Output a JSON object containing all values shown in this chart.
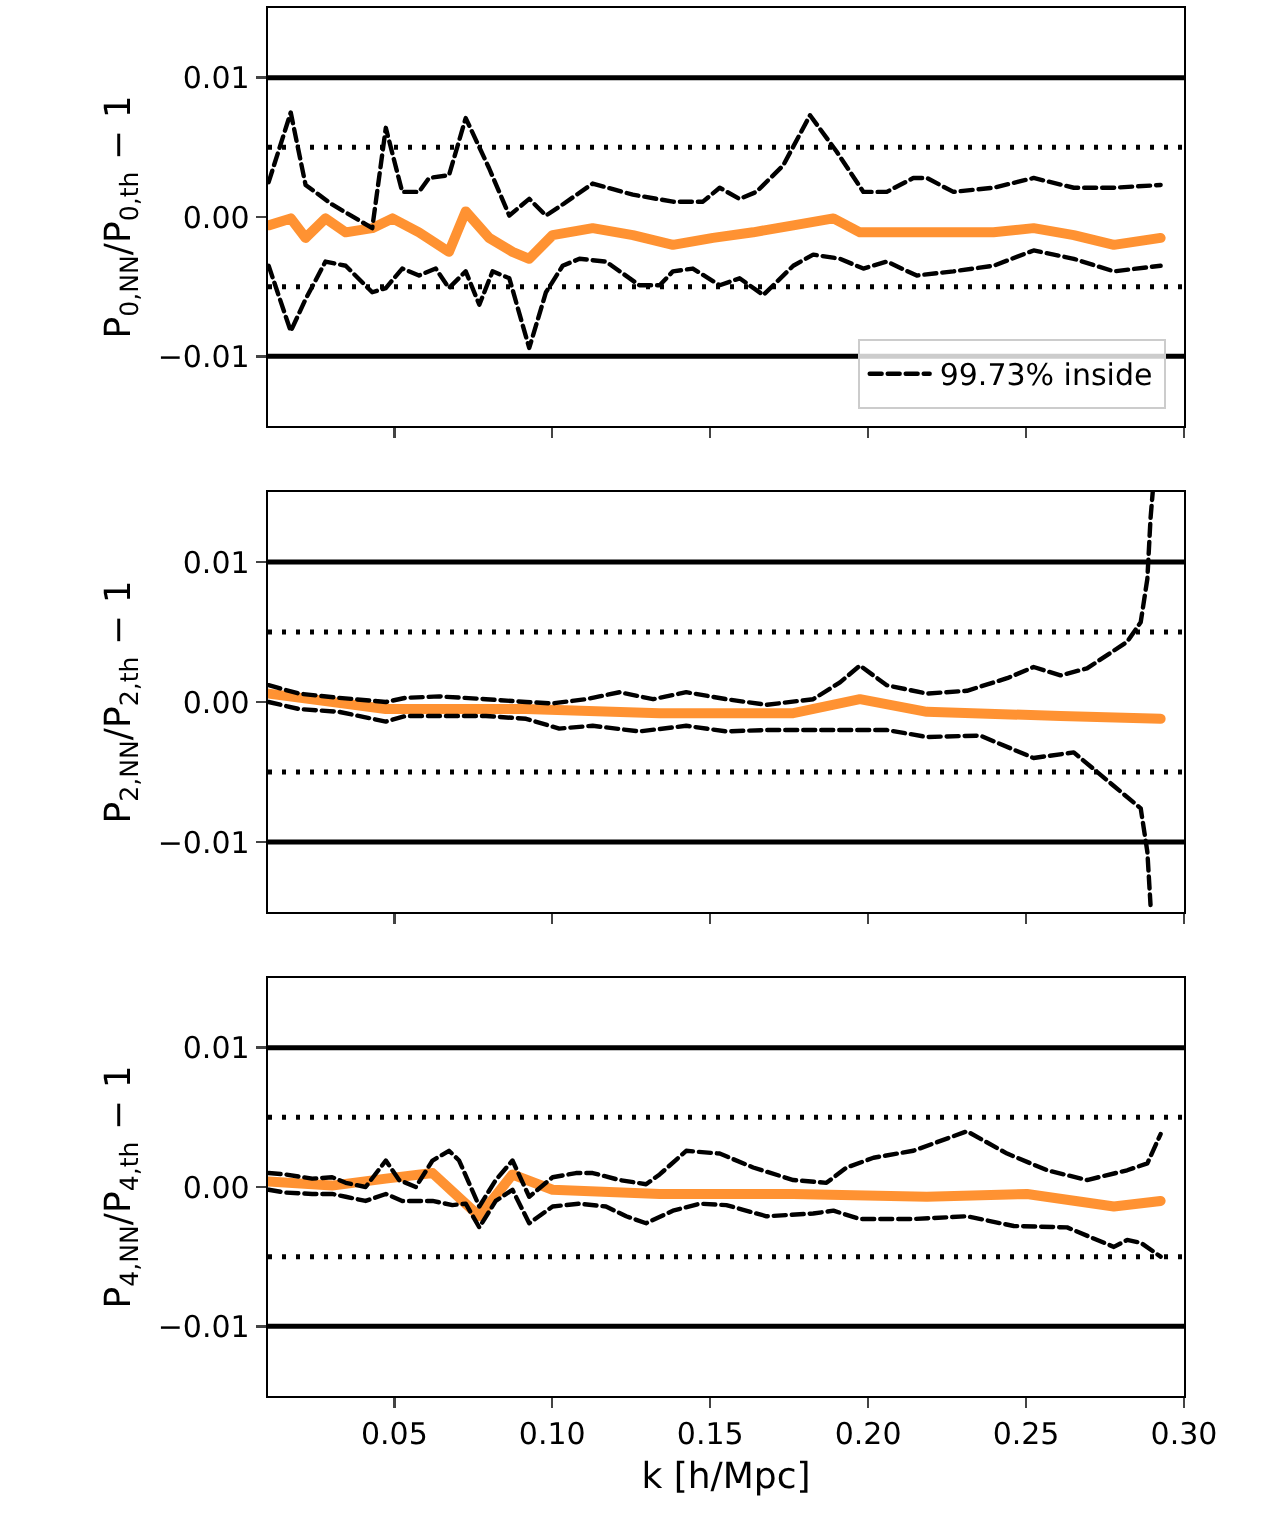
{
  "chart_data": [
    {
      "type": "line",
      "ylabel": "P$_{0,NN}$/P$_{0,th}$ − 1",
      "xlim": [
        0.01,
        0.3
      ],
      "ylim": [
        -0.015,
        0.015
      ],
      "xticks": [
        {
          "value": 0.05,
          "label": null
        },
        {
          "value": 0.1,
          "label": null
        },
        {
          "value": 0.15,
          "label": null
        },
        {
          "value": 0.2,
          "label": null
        },
        {
          "value": 0.25,
          "label": null
        },
        {
          "value": 0.3,
          "label": null
        }
      ],
      "yticks": [
        {
          "value": -0.01,
          "label": "−0.01"
        },
        {
          "value": 0,
          "label": "0.00"
        },
        {
          "value": 0.01,
          "label": "0.01"
        }
      ],
      "tick_labels": "y",
      "grid": false,
      "legend": "bottom right",
      "ref_lines": [
        {
          "axis": "y",
          "value": 0.01,
          "color": "#000000",
          "line_style": "solid"
        },
        {
          "axis": "y",
          "value": -0.01,
          "color": "#000000",
          "line_style": "solid"
        },
        {
          "axis": "y",
          "value": 0.005,
          "color": "#000000",
          "line_style": "dotted"
        },
        {
          "axis": "y",
          "value": -0.005,
          "color": "#000000",
          "line_style": "dotted"
        }
      ],
      "series": [
        {
          "color": "#ff7f0e",
          "line_style": "solid",
          "x": [
            0.0102,
            0.0172,
            0.0219,
            0.0282,
            0.0346,
            0.043,
            0.0494,
            0.0578,
            0.0673,
            0.0726,
            0.08,
            0.0874,
            0.0927,
            0.1001,
            0.1128,
            0.1255,
            0.1382,
            0.1509,
            0.1636,
            0.1763,
            0.189,
            0.1974,
            0.2186,
            0.2397,
            0.2524,
            0.2651,
            0.2778,
            0.2926
          ],
          "values": [
            -0.0006,
            -0.0001,
            -0.0015,
            -0.0001,
            -0.0011,
            -0.0008,
            -0.0001,
            -0.0011,
            -0.0025,
            0.0004,
            -0.0015,
            -0.0025,
            -0.003,
            -0.0013,
            -0.0008,
            -0.0013,
            -0.002,
            -0.0015,
            -0.0011,
            -0.0006,
            -0.0001,
            -0.0011,
            -0.0011,
            -0.0011,
            -0.0008,
            -0.0013,
            -0.002,
            -0.0015
          ]
        },
        {
          "name": "99.73% inside",
          "color": "#000000",
          "line_style": "dashed",
          "x": [
            0.0102,
            0.0172,
            0.0219,
            0.0303,
            0.043,
            0.0473,
            0.0525,
            0.0578,
            0.061,
            0.0673,
            0.0726,
            0.08,
            0.0864,
            0.0927,
            0.098,
            0.1033,
            0.1128,
            0.1255,
            0.1382,
            0.1477,
            0.153,
            0.1593,
            0.1646,
            0.1731,
            0.1816,
            0.19,
            0.1985,
            0.2059,
            0.2143,
            0.2186,
            0.227,
            0.2397,
            0.2524,
            0.2651,
            0.2778,
            0.2926
          ],
          "values": [
            0.0025,
            0.0075,
            0.0023,
            0.0009,
            -0.0008,
            0.0064,
            0.0018,
            0.0018,
            0.0028,
            0.003,
            0.0071,
            0.0035,
            0.0001,
            0.0013,
            0.0001,
            0.0009,
            0.0024,
            0.0016,
            0.0011,
            0.0011,
            0.0021,
            0.0013,
            0.0018,
            0.0037,
            0.0073,
            0.0047,
            0.0018,
            0.0018,
            0.0028,
            0.0028,
            0.0018,
            0.0021,
            0.0028,
            0.0021,
            0.0021,
            0.0023
          ]
        },
        {
          "color": "#000000",
          "line_style": "dashed",
          "x": [
            0.0102,
            0.0172,
            0.0219,
            0.0282,
            0.0346,
            0.043,
            0.0473,
            0.0525,
            0.0578,
            0.0631,
            0.0673,
            0.0726,
            0.0769,
            0.0811,
            0.0864,
            0.0927,
            0.098,
            0.1033,
            0.1086,
            0.117,
            0.1276,
            0.134,
            0.1382,
            0.1445,
            0.153,
            0.1593,
            0.1668,
            0.1763,
            0.1826,
            0.1911,
            0.1985,
            0.2059,
            0.2154,
            0.227,
            0.2397,
            0.2524,
            0.2651,
            0.2778,
            0.2926
          ],
          "values": [
            -0.0035,
            -0.0082,
            -0.0059,
            -0.0032,
            -0.0035,
            -0.0054,
            -0.0051,
            -0.0037,
            -0.0042,
            -0.0037,
            -0.0051,
            -0.0039,
            -0.0063,
            -0.0039,
            -0.0044,
            -0.0094,
            -0.0054,
            -0.0035,
            -0.003,
            -0.0032,
            -0.0049,
            -0.0049,
            -0.0039,
            -0.0037,
            -0.0049,
            -0.0044,
            -0.0056,
            -0.0035,
            -0.0027,
            -0.003,
            -0.0037,
            -0.0032,
            -0.0042,
            -0.0039,
            -0.0035,
            -0.0024,
            -0.003,
            -0.0039,
            -0.0035
          ]
        }
      ]
    },
    {
      "type": "line",
      "ylabel": "P$_{2,NN}$/P$_{2,th}$ − 1",
      "xlim": [
        0.01,
        0.3
      ],
      "ylim": [
        -0.015,
        0.015
      ],
      "xticks": [
        {
          "value": 0.05,
          "label": null
        },
        {
          "value": 0.1,
          "label": null
        },
        {
          "value": 0.15,
          "label": null
        },
        {
          "value": 0.2,
          "label": null
        },
        {
          "value": 0.25,
          "label": null
        },
        {
          "value": 0.3,
          "label": null
        }
      ],
      "yticks": [
        {
          "value": -0.01,
          "label": "−0.01"
        },
        {
          "value": 0,
          "label": "0.00"
        },
        {
          "value": 0.01,
          "label": "0.01"
        }
      ],
      "tick_labels": "y",
      "grid": false,
      "ref_lines": [
        {
          "axis": "y",
          "value": 0.01,
          "color": "#000000",
          "line_style": "solid"
        },
        {
          "axis": "y",
          "value": -0.01,
          "color": "#000000",
          "line_style": "solid"
        },
        {
          "axis": "y",
          "value": 0.005,
          "color": "#000000",
          "line_style": "dotted"
        },
        {
          "axis": "y",
          "value": -0.005,
          "color": "#000000",
          "line_style": "dotted"
        }
      ],
      "series": [
        {
          "color": "#ff7f0e",
          "line_style": "solid",
          "x": [
            0.0102,
            0.0473,
            0.0917,
            0.134,
            0.1763,
            0.1974,
            0.2186,
            0.2609,
            0.2926
          ],
          "values": [
            0.0006,
            -0.0005,
            -0.0005,
            -0.0008,
            -0.0008,
            0.0002,
            -0.0007,
            -0.001,
            -0.0012
          ]
        },
        {
          "color": "#000000",
          "line_style": "dashed",
          "x": [
            0.0102,
            0.0198,
            0.0324,
            0.0473,
            0.0536,
            0.0642,
            0.079,
            0.0917,
            0.1001,
            0.1107,
            0.1213,
            0.1319,
            0.1424,
            0.1551,
            0.1678,
            0.1826,
            0.1911,
            0.1974,
            0.2059,
            0.2186,
            0.2313,
            0.244,
            0.2524,
            0.2609,
            0.2693,
            0.282,
            0.2863,
            0.2884,
            0.2894,
            0.2901
          ],
          "values": [
            0.0012,
            0.0006,
            0.0003,
            0,
            0.0003,
            0.0004,
            0.0002,
            0,
            -0.0001,
            0.0002,
            0.0007,
            0.0002,
            0.0007,
            0.0002,
            -0.0002,
            0.0002,
            0.0014,
            0.0026,
            0.0012,
            0.0006,
            0.0008,
            0.0017,
            0.0025,
            0.0019,
            0.0024,
            0.0043,
            0.0057,
            0.0088,
            0.0131,
            0.015
          ]
        },
        {
          "color": "#000000",
          "line_style": "dashed",
          "x": [
            0.0102,
            0.0198,
            0.0324,
            0.0473,
            0.0536,
            0.079,
            0.0917,
            0.1022,
            0.1128,
            0.1276,
            0.1424,
            0.1551,
            0.1678,
            0.1932,
            0.2059,
            0.2186,
            0.2355,
            0.2524,
            0.2651,
            0.2778,
            0.2863,
            0.2884,
            0.2894
          ],
          "values": [
            0,
            -0.0005,
            -0.0007,
            -0.0014,
            -0.001,
            -0.001,
            -0.0012,
            -0.0019,
            -0.0017,
            -0.0021,
            -0.0017,
            -0.0021,
            -0.002,
            -0.002,
            -0.002,
            -0.0025,
            -0.0024,
            -0.004,
            -0.0036,
            -0.006,
            -0.0076,
            -0.0107,
            -0.0145
          ]
        }
      ]
    },
    {
      "type": "line",
      "ylabel": "P$_{4,NN}$/P$_{4,th}$ − 1",
      "xlabel": "k [h/Mpc]",
      "xlim": [
        0.01,
        0.3
      ],
      "ylim": [
        -0.015,
        0.015
      ],
      "xticks": [
        {
          "value": 0.05,
          "label": "0.05"
        },
        {
          "value": 0.1,
          "label": "0.10"
        },
        {
          "value": 0.15,
          "label": "0.15"
        },
        {
          "value": 0.2,
          "label": "0.20"
        },
        {
          "value": 0.25,
          "label": "0.25"
        },
        {
          "value": 0.3,
          "label": "0.30"
        }
      ],
      "yticks": [
        {
          "value": -0.01,
          "label": "−0.01"
        },
        {
          "value": 0,
          "label": "0.00"
        },
        {
          "value": 0.01,
          "label": "0.01"
        }
      ],
      "grid": false,
      "ref_lines": [
        {
          "axis": "y",
          "value": 0.01,
          "color": "#000000",
          "line_style": "solid"
        },
        {
          "axis": "y",
          "value": -0.01,
          "color": "#000000",
          "line_style": "solid"
        },
        {
          "axis": "y",
          "value": 0.005,
          "color": "#000000",
          "line_style": "dotted"
        },
        {
          "axis": "y",
          "value": -0.005,
          "color": "#000000",
          "line_style": "dotted"
        }
      ],
      "series": [
        {
          "color": "#ff7f0e",
          "line_style": "solid",
          "x": [
            0.0102,
            0.0303,
            0.0473,
            0.0621,
            0.0769,
            0.0874,
            0.1001,
            0.134,
            0.1763,
            0.2186,
            0.2503,
            0.2778,
            0.2926
          ],
          "values": [
            0.0004,
            0.0001,
            0.0006,
            0.001,
            -0.0021,
            0.0009,
            -0.0002,
            -0.0005,
            -0.0005,
            -0.0007,
            -0.0005,
            -0.0014,
            -0.001
          ]
        },
        {
          "color": "#000000",
          "line_style": "dashed",
          "x": [
            0.0102,
            0.0155,
            0.024,
            0.0303,
            0.0346,
            0.0409,
            0.0473,
            0.0515,
            0.0568,
            0.0621,
            0.0673,
            0.0705,
            0.0769,
            0.0821,
            0.0874,
            0.0927,
            0.1001,
            0.1075,
            0.1128,
            0.1213,
            0.1297,
            0.134,
            0.1424,
            0.153,
            0.1636,
            0.1763,
            0.1868,
            0.1932,
            0.2017,
            0.2143,
            0.2313,
            0.244,
            0.2567,
            0.2693,
            0.282,
            0.2884,
            0.2926
          ],
          "values": [
            0.001,
            0.0009,
            0.0006,
            0.0007,
            0.0003,
            0,
            0.0019,
            0.0005,
            0,
            0.0019,
            0.0026,
            0.0019,
            -0.0014,
            0.0005,
            0.0019,
            -0.0007,
            0.0007,
            0.001,
            0.001,
            0.0005,
            0.0002,
            0.0009,
            0.0026,
            0.0024,
            0.0014,
            0.0005,
            0.0003,
            0.0014,
            0.0021,
            0.0026,
            0.004,
            0.0024,
            0.0012,
            0.0005,
            0.0012,
            0.0017,
            0.0038
          ]
        },
        {
          "color": "#000000",
          "line_style": "dashed",
          "x": [
            0.0102,
            0.0155,
            0.024,
            0.0303,
            0.0346,
            0.0409,
            0.0473,
            0.0525,
            0.0621,
            0.0684,
            0.0726,
            0.0769,
            0.0821,
            0.0874,
            0.0927,
            0.1001,
            0.1086,
            0.117,
            0.1234,
            0.1297,
            0.1382,
            0.1467,
            0.1551,
            0.1678,
            0.1826,
            0.189,
            0.1974,
            0.2143,
            0.2313,
            0.2461,
            0.263,
            0.2778,
            0.282,
            0.2863,
            0.2926
          ],
          "values": [
            -0.0002,
            -0.0004,
            -0.0005,
            -0.0005,
            -0.0007,
            -0.001,
            -0.0005,
            -0.001,
            -0.001,
            -0.0013,
            -0.0012,
            -0.0029,
            -0.001,
            -0.0002,
            -0.0026,
            -0.0014,
            -0.0012,
            -0.0014,
            -0.0021,
            -0.0026,
            -0.0017,
            -0.0012,
            -0.0013,
            -0.0021,
            -0.0019,
            -0.0017,
            -0.0023,
            -0.0023,
            -0.0021,
            -0.0028,
            -0.0029,
            -0.0043,
            -0.0038,
            -0.004,
            -0.005
          ]
        }
      ]
    }
  ]
}
